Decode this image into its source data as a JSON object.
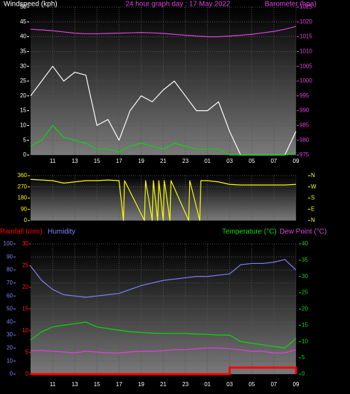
{
  "chart_data": [
    {
      "type": "line",
      "title": "24 hour graph day : 17 May 2022",
      "x": [
        0,
        1,
        2,
        3,
        4,
        5,
        6,
        7,
        8,
        9,
        10,
        11,
        12,
        13,
        14,
        15,
        16,
        17,
        18,
        19,
        20,
        21,
        22,
        23,
        24
      ],
      "xlim": [
        0,
        24
      ],
      "xticks": [
        {
          "value": 2,
          "label": "11"
        },
        {
          "value": 4,
          "label": "13"
        },
        {
          "value": 6,
          "label": "15"
        },
        {
          "value": 8,
          "label": "17"
        },
        {
          "value": 10,
          "label": "19"
        },
        {
          "value": 12,
          "label": "21"
        },
        {
          "value": 14,
          "label": "23"
        },
        {
          "value": 16,
          "label": "01"
        },
        {
          "value": 18,
          "label": "03"
        },
        {
          "value": 20,
          "label": "05"
        },
        {
          "value": 22,
          "label": "07"
        },
        {
          "value": 24,
          "label": "09"
        }
      ],
      "ylim": [
        0,
        50
      ],
      "yticks": [
        0,
        5,
        10,
        15,
        20,
        25,
        30,
        35,
        40,
        45,
        50
      ],
      "y2lim": [
        975,
        1025
      ],
      "y2ticks": [
        975,
        980,
        985,
        990,
        995,
        1000,
        1005,
        1010,
        1015,
        1020,
        1025
      ],
      "grid": true,
      "series": [
        {
          "name": "Windspeed (kph)",
          "color": "#ffffff",
          "values": [
            20,
            25,
            30,
            25,
            28,
            27,
            10,
            12,
            5,
            15,
            20,
            18,
            22,
            25,
            20,
            15,
            15,
            18,
            8,
            0,
            0,
            0,
            0,
            0,
            8
          ]
        },
        {
          "color": "#00e000",
          "values": [
            3,
            5,
            10,
            6,
            5,
            4,
            2,
            2,
            1,
            3,
            4,
            3,
            2,
            4,
            3,
            2,
            2,
            2,
            0,
            0,
            0,
            0,
            0,
            0,
            1
          ]
        },
        {
          "name": "Barometer (hpa)",
          "color": "#e040e0",
          "axis": "y2",
          "values": [
            1017.5,
            1017.3,
            1017,
            1016.6,
            1016.2,
            1016,
            1016,
            1016.1,
            1016.2,
            1016.3,
            1016.4,
            1016.3,
            1016.1,
            1015.8,
            1015.5,
            1015.2,
            1015,
            1015,
            1015.2,
            1015.5,
            1015.8,
            1016.3,
            1016.8,
            1017.5,
            1018.5
          ]
        }
      ]
    },
    {
      "type": "line",
      "x": [
        0,
        1,
        2,
        3,
        4,
        5,
        6,
        7,
        8,
        8.4,
        8.5,
        10.3,
        10.4,
        11,
        11.1,
        11.5,
        11.6,
        12,
        12.1,
        12.6,
        12.7,
        14.3,
        14.4,
        15.3,
        15.4,
        16,
        17,
        18,
        19,
        20,
        21,
        22,
        23,
        24
      ],
      "xlim": [
        0,
        24
      ],
      "ylim": [
        0,
        360
      ],
      "yticks": [
        0,
        90,
        180,
        270,
        360
      ],
      "y2lim": [
        0,
        360
      ],
      "y2ticks": [
        {
          "value": 360,
          "label": "N"
        },
        {
          "value": 270,
          "label": "W"
        },
        {
          "value": 180,
          "label": "S"
        },
        {
          "value": 90,
          "label": "E"
        },
        {
          "value": 0,
          "label": "N"
        }
      ],
      "grid": true,
      "series": [
        {
          "color": "#ffff00",
          "values": [
            330,
            325,
            320,
            300,
            310,
            320,
            320,
            325,
            320,
            0,
            320,
            0,
            320,
            0,
            320,
            0,
            320,
            0,
            320,
            0,
            320,
            0,
            320,
            0,
            320,
            320,
            310,
            290,
            285,
            285,
            285,
            285,
            285,
            290
          ]
        }
      ]
    },
    {
      "type": "line",
      "x": [
        0,
        1,
        2,
        3,
        4,
        5,
        6,
        7,
        8,
        9,
        10,
        11,
        12,
        13,
        14,
        15,
        16,
        17,
        18,
        19,
        20,
        21,
        22,
        23,
        24
      ],
      "xlim": [
        0,
        24
      ],
      "xticks": [
        {
          "value": 2,
          "label": "11"
        },
        {
          "value": 4,
          "label": "13"
        },
        {
          "value": 6,
          "label": "15"
        },
        {
          "value": 8,
          "label": "17"
        },
        {
          "value": 10,
          "label": "19"
        },
        {
          "value": 12,
          "label": "21"
        },
        {
          "value": 14,
          "label": "23"
        },
        {
          "value": 16,
          "label": "01"
        },
        {
          "value": 18,
          "label": "03"
        },
        {
          "value": 20,
          "label": "05"
        },
        {
          "value": 22,
          "label": "07"
        },
        {
          "value": 24,
          "label": "09"
        }
      ],
      "ylim": [
        0,
        100
      ],
      "yticks": [
        0,
        10,
        20,
        30,
        40,
        50,
        60,
        70,
        80,
        90,
        100
      ],
      "y2lim": [
        0,
        40
      ],
      "y2ticks": [
        0,
        5,
        10,
        15,
        20,
        25,
        30,
        35,
        40
      ],
      "y3lim": [
        0,
        30
      ],
      "y3ticks": [
        0,
        5,
        10,
        15,
        20,
        25,
        30
      ],
      "grid": true,
      "series": [
        {
          "name": "Rainfall (mm)",
          "color": "#ff0000",
          "axis": "y3",
          "step": true,
          "values": [
            0,
            0,
            0,
            0,
            0,
            0,
            0,
            0,
            0,
            0,
            0,
            0,
            0,
            0,
            0,
            0,
            0,
            0,
            1.5,
            1.5,
            1.5,
            1.5,
            1.5,
            1.5,
            0
          ]
        },
        {
          "name": "Humidity",
          "color": "#8080ff",
          "values": [
            83,
            72,
            65,
            61,
            60,
            59,
            60,
            61,
            62,
            65,
            68,
            70,
            72,
            73,
            74,
            75,
            75,
            76,
            77,
            84,
            85,
            85,
            86,
            88,
            80
          ]
        },
        {
          "name": "Temperature (°C)",
          "color": "#00e000",
          "axis": "y2",
          "values": [
            10.5,
            13,
            14.5,
            15,
            15.5,
            16,
            14.5,
            14,
            13.5,
            13,
            12.8,
            12.6,
            12.5,
            12.5,
            12.5,
            12.3,
            12.2,
            12,
            12,
            10,
            9.5,
            9,
            8.5,
            8,
            11
          ]
        },
        {
          "name": "Dew Point (°C)",
          "color": "#e040e0",
          "axis": "y2",
          "values": [
            7.2,
            7.3,
            7,
            6.8,
            6.5,
            7,
            6.8,
            6.5,
            6.5,
            6.8,
            7,
            7,
            7.2,
            7.5,
            7.5,
            7.8,
            8,
            8,
            7.8,
            7.5,
            7,
            7,
            6.5,
            6.5,
            7.5
          ]
        }
      ]
    }
  ]
}
